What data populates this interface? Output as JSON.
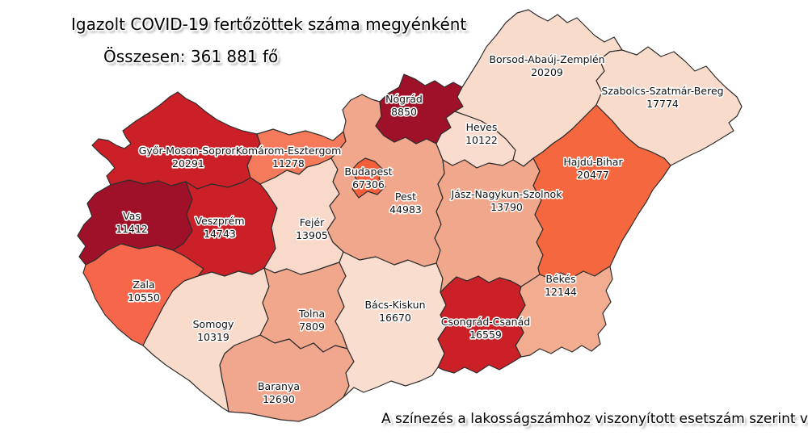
{
  "header": {
    "title": "Igazolt COVID-19 fertőzöttek száma megyénként",
    "total": "Összesen: 361 881 fő"
  },
  "footnote": "A színezés a lakosságszámhoz viszonyított esetszám szerint változik",
  "chart_data": {
    "type": "heatmap",
    "subtype": "choropleth-map-hungary-counties",
    "title": "Igazolt COVID-19 fertőzöttek száma megyénként",
    "total_cases": 361881,
    "unit": "fő",
    "legend": "off",
    "regions": [
      {
        "id": "gyms",
        "name": "Győr-Moson-Sopron",
        "value": 20291,
        "color": "#CB2027"
      },
      {
        "id": "komarom",
        "name": "Komárom-Esztergom",
        "value": 11278,
        "color": "#F57A5B"
      },
      {
        "id": "vas",
        "name": "Vas",
        "value": 11412,
        "color": "#9E1128"
      },
      {
        "id": "veszprem",
        "name": "Veszprém",
        "value": 14743,
        "color": "#CB2027"
      },
      {
        "id": "zala",
        "name": "Zala",
        "value": 10550,
        "color": "#F5664A"
      },
      {
        "id": "somogy",
        "name": "Somogy",
        "value": 10319,
        "color": "#F9DBCC"
      },
      {
        "id": "fejer",
        "name": "Fejér",
        "value": 13905,
        "color": "#F8D9CA"
      },
      {
        "id": "tolna",
        "name": "Tolna",
        "value": 7809,
        "color": "#F1A78C"
      },
      {
        "id": "baranya",
        "name": "Baranya",
        "value": 12690,
        "color": "#F0A78D"
      },
      {
        "id": "bacs",
        "name": "Bács-Kiskun",
        "value": 16670,
        "color": "#F9DDCF"
      },
      {
        "id": "pest",
        "name": "Pest",
        "value": 44983,
        "color": "#F1A78C"
      },
      {
        "id": "budapest",
        "name": "Budapest",
        "value": 67306,
        "color": "#F45F3B"
      },
      {
        "id": "nograd",
        "name": "Nógrád",
        "value": 8850,
        "color": "#9E1128"
      },
      {
        "id": "heves",
        "name": "Heves",
        "value": 10122,
        "color": "#F9DCCE"
      },
      {
        "id": "borsod",
        "name": "Borsod-Abaúj-Zemplén",
        "value": 20209,
        "color": "#F9DBCC"
      },
      {
        "id": "szabolcs",
        "name": "Szabolcs-Szatmár-Bereg",
        "value": 17774,
        "color": "#F9DBCC"
      },
      {
        "id": "jasz",
        "name": "Jász-Nagykun-Szolnok",
        "value": 13790,
        "color": "#F1A78C"
      },
      {
        "id": "hajdu",
        "name": "Hajdú-Bihar",
        "value": 20477,
        "color": "#F4673F"
      },
      {
        "id": "bekes",
        "name": "Békés",
        "value": 12144,
        "color": "#F2AC90"
      },
      {
        "id": "csongrad",
        "name": "Csongrád-Csanád",
        "value": 16559,
        "color": "#CB2027"
      }
    ]
  }
}
